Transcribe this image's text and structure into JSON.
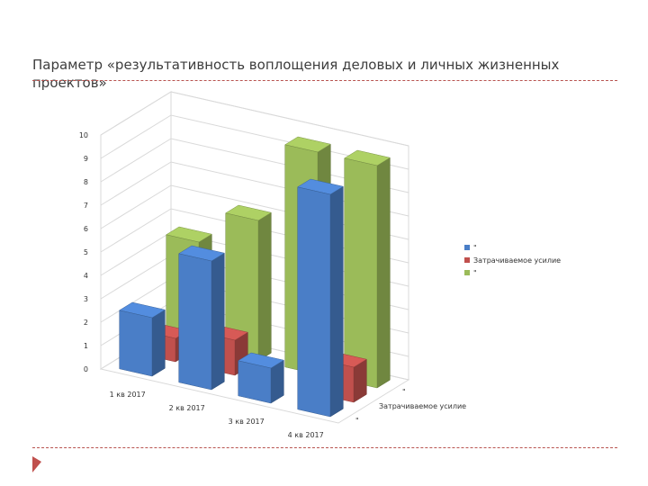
{
  "slide": {
    "title": "Параметр «результативность воплощения деловых и личных жизненных проектов»"
  },
  "colors": {
    "series_blue": "#4a7ec7",
    "series_red": "#c0504d",
    "series_green": "#9bbb59",
    "accent_rule": "#b85450"
  },
  "chart_data": {
    "type": "bar",
    "subtype": "3d-clustered-column",
    "title": "",
    "categories": [
      "1 кв 2017",
      "2 кв 2017",
      "3 кв 2017",
      "4 кв 2017"
    ],
    "series": [
      {
        "name": "\"",
        "values": [
          2.5,
          5.5,
          1.5,
          9.5
        ]
      },
      {
        "name": "Затрачиваемое усилие",
        "values": [
          1,
          1.5,
          0,
          1.5
        ]
      },
      {
        "name": "\"",
        "values": [
          4.5,
          6,
          9.5,
          9.5
        ]
      }
    ],
    "yticks": [
      "0",
      "1",
      "2",
      "3",
      "4",
      "5",
      "6",
      "7",
      "8",
      "9",
      "10"
    ],
    "ylim": [
      0,
      10
    ],
    "depth_labels": [
      "\"",
      "Затрачиваемое усилие",
      "\""
    ],
    "legend": {
      "position": "right",
      "entries": [
        "\"",
        "Затрачиваемое усилие",
        "\""
      ]
    },
    "xlabel": "",
    "ylabel": ""
  }
}
